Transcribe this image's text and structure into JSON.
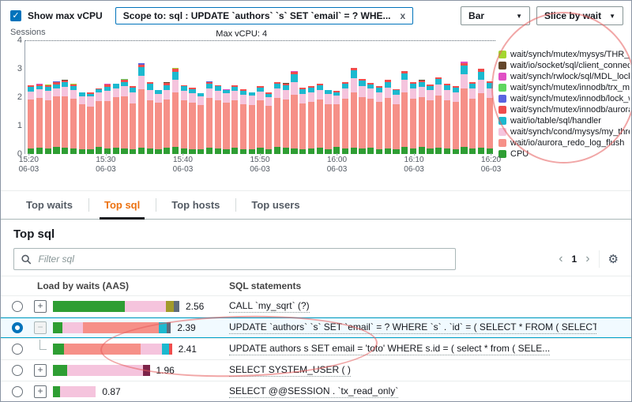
{
  "icons": {
    "check": "✓",
    "caret": "▼",
    "gear": "⚙"
  },
  "topbar": {
    "show_max_vcpu_label": "Show max vCPU",
    "scope_chip": "Scope to: sql : UPDATE `authors` `s` SET `email` = ? WHE...",
    "chip_close": "x",
    "chart_type_dropdown": "Bar",
    "slice_dropdown": "Slice by wait"
  },
  "chart_data": {
    "type": "bar",
    "stacked": true,
    "ylabel": "Sessions",
    "ylim": [
      0,
      4
    ],
    "yticks": [
      4,
      3,
      2,
      1,
      0
    ],
    "max_vcpu_label": "Max vCPU: 4",
    "max_vcpu_value": 4,
    "grid": "off",
    "legend_position": "right",
    "x_ticks": [
      {
        "time": "15:20",
        "date": "06-03"
      },
      {
        "time": "15:30",
        "date": "06-03"
      },
      {
        "time": "15:40",
        "date": "06-03"
      },
      {
        "time": "15:50",
        "date": "06-03"
      },
      {
        "time": "16:00",
        "date": "06-03"
      },
      {
        "time": "16:10",
        "date": "06-03"
      },
      {
        "time": "16:20",
        "date": "06-03"
      }
    ],
    "tick_bar_indices": [
      0,
      9,
      18,
      27,
      36,
      45,
      54
    ],
    "series": [
      {
        "name": "CPU",
        "color": "#2e9e33"
      },
      {
        "name": "wait/io/aurora_redo_log_flush",
        "color": "#f69088"
      },
      {
        "name": "wait/synch/cond/mysys/my_thread_var",
        "color": "#f5c4dd"
      },
      {
        "name": "wait/io/table/sql/handler",
        "color": "#1cb9cf"
      },
      {
        "name": "wait/synch/mutex/innodb/aurora_lock",
        "color": "#ef4d4d"
      },
      {
        "name": "wait/synch/mutex/innodb/lock_wait_m",
        "color": "#5a63e0"
      },
      {
        "name": "wait/synch/mutex/innodb/trx_mutex",
        "color": "#5ed65e"
      },
      {
        "name": "wait/synch/rwlock/sql/MDL_lock::rwl",
        "color": "#e04fc4"
      },
      {
        "name": "wait/io/socket/sql/client_connectio",
        "color": "#63462b"
      },
      {
        "name": "wait/synch/mutex/mysys/THR_LOCK::mu",
        "color": "#a4d62f"
      }
    ],
    "bars": [
      [
        0.2,
        1.72,
        0.28,
        0.15,
        0.07,
        0,
        0,
        0,
        0,
        0
      ],
      [
        0.22,
        1.75,
        0.3,
        0.12,
        0.05,
        0,
        0,
        0.03,
        0,
        0
      ],
      [
        0.2,
        1.7,
        0.32,
        0.14,
        0.06,
        0,
        0,
        0,
        0,
        0.02
      ],
      [
        0.24,
        1.78,
        0.3,
        0.12,
        0.08,
        0.03,
        0,
        0,
        0,
        0
      ],
      [
        0.22,
        1.82,
        0.33,
        0.15,
        0.06,
        0,
        0,
        0,
        0.02,
        0
      ],
      [
        0.2,
        1.74,
        0.3,
        0.16,
        0.05,
        0,
        0,
        0,
        0,
        0.02
      ],
      [
        0.16,
        1.58,
        0.3,
        0.12,
        0,
        0,
        0,
        0,
        0,
        0
      ],
      [
        0.18,
        1.5,
        0.34,
        0.1,
        0.05,
        0,
        0,
        0,
        0,
        0
      ],
      [
        0.24,
        1.62,
        0.3,
        0.12,
        0.04,
        0,
        0,
        0,
        0,
        0
      ],
      [
        0.2,
        1.66,
        0.36,
        0.14,
        0.08,
        0,
        0,
        0.03,
        0,
        0
      ],
      [
        0.22,
        1.78,
        0.32,
        0.14,
        0,
        0,
        0,
        0,
        0,
        0
      ],
      [
        0.2,
        1.84,
        0.34,
        0.16,
        0.06,
        0,
        0.03,
        0,
        0,
        0
      ],
      [
        0.18,
        1.6,
        0.38,
        0.18,
        0.05,
        0,
        0,
        0,
        0,
        0
      ],
      [
        0.22,
        2.05,
        0.48,
        0.3,
        0.1,
        0.05,
        0,
        0,
        0,
        0
      ],
      [
        0.2,
        1.7,
        0.36,
        0.22,
        0.06,
        0,
        0,
        0,
        0,
        0
      ],
      [
        0.18,
        1.62,
        0.32,
        0.14,
        0,
        0,
        0,
        0,
        0,
        0
      ],
      [
        0.22,
        1.7,
        0.34,
        0.16,
        0.08,
        0,
        0,
        0,
        0.02,
        0
      ],
      [
        0.24,
        1.92,
        0.45,
        0.28,
        0.1,
        0,
        0,
        0,
        0,
        0.03
      ],
      [
        0.2,
        1.68,
        0.34,
        0.16,
        0.05,
        0,
        0,
        0,
        0,
        0
      ],
      [
        0.18,
        1.64,
        0.32,
        0.14,
        0.06,
        0,
        0,
        0,
        0,
        0
      ],
      [
        0.16,
        1.56,
        0.3,
        0.12,
        0,
        0,
        0,
        0,
        0,
        0
      ],
      [
        0.22,
        1.76,
        0.34,
        0.14,
        0.08,
        0.03,
        0,
        0,
        0,
        0
      ],
      [
        0.2,
        1.7,
        0.32,
        0.16,
        0.05,
        0,
        0,
        0,
        0,
        0
      ],
      [
        0.18,
        1.62,
        0.34,
        0.12,
        0,
        0,
        0,
        0.03,
        0,
        0
      ],
      [
        0.22,
        1.68,
        0.32,
        0.14,
        0.06,
        0,
        0,
        0,
        0,
        0
      ],
      [
        0.18,
        1.58,
        0.32,
        0.14,
        0.05,
        0,
        0,
        0,
        0,
        0
      ],
      [
        0.16,
        1.56,
        0.34,
        0.12,
        0,
        0,
        0,
        0,
        0,
        0
      ],
      [
        0.22,
        1.66,
        0.32,
        0.14,
        0.06,
        0,
        0,
        0,
        0,
        0
      ],
      [
        0.18,
        1.52,
        0.3,
        0.12,
        0.05,
        0,
        0,
        0,
        0,
        0
      ],
      [
        0.26,
        1.72,
        0.34,
        0.16,
        0.06,
        0,
        0,
        0,
        0,
        0
      ],
      [
        0.22,
        1.7,
        0.34,
        0.16,
        0.05,
        0,
        0,
        0,
        0.02,
        0
      ],
      [
        0.2,
        1.88,
        0.46,
        0.26,
        0.08,
        0,
        0,
        0.03,
        0,
        0
      ],
      [
        0.18,
        1.6,
        0.34,
        0.16,
        0.05,
        0,
        0,
        0,
        0,
        0
      ],
      [
        0.2,
        1.64,
        0.34,
        0.16,
        0.06,
        0,
        0,
        0,
        0,
        0
      ],
      [
        0.22,
        1.7,
        0.34,
        0.16,
        0.05,
        0,
        0,
        0,
        0,
        0
      ],
      [
        0.18,
        1.58,
        0.36,
        0.14,
        0,
        0,
        0,
        0,
        0,
        0
      ],
      [
        0.24,
        1.5,
        0.32,
        0.12,
        0.05,
        0,
        0,
        0,
        0,
        0
      ],
      [
        0.2,
        1.74,
        0.36,
        0.16,
        0.08,
        0,
        0,
        0,
        0,
        0
      ],
      [
        0.22,
        1.95,
        0.5,
        0.28,
        0.08,
        0,
        0,
        0,
        0,
        0
      ],
      [
        0.2,
        1.8,
        0.38,
        0.2,
        0.06,
        0,
        0,
        0,
        0,
        0
      ],
      [
        0.22,
        1.72,
        0.36,
        0.14,
        0.05,
        0,
        0,
        0,
        0,
        0
      ],
      [
        0.18,
        1.66,
        0.34,
        0.16,
        0.06,
        0,
        0,
        0,
        0,
        0
      ],
      [
        0.2,
        1.76,
        0.38,
        0.18,
        0.08,
        0,
        0,
        0,
        0,
        0
      ],
      [
        0.16,
        1.6,
        0.32,
        0.16,
        0.05,
        0,
        0,
        0,
        0,
        0
      ],
      [
        0.26,
        1.9,
        0.44,
        0.24,
        0.08,
        0,
        0,
        0,
        0,
        0
      ],
      [
        0.2,
        1.74,
        0.36,
        0.18,
        0.05,
        0,
        0,
        0,
        0,
        0
      ],
      [
        0.24,
        1.76,
        0.36,
        0.16,
        0.06,
        0,
        0,
        0,
        0.02,
        0
      ],
      [
        0.2,
        1.7,
        0.34,
        0.16,
        0.05,
        0,
        0,
        0,
        0,
        0
      ],
      [
        0.22,
        1.84,
        0.38,
        0.2,
        0.06,
        0,
        0,
        0,
        0,
        0
      ],
      [
        0.2,
        1.7,
        0.36,
        0.16,
        0.05,
        0,
        0,
        0,
        0,
        0
      ],
      [
        0.18,
        1.66,
        0.34,
        0.16,
        0.05,
        0,
        0,
        0,
        0,
        0
      ],
      [
        0.24,
        2.08,
        0.5,
        0.3,
        0.08,
        0,
        0,
        0.05,
        0,
        0
      ],
      [
        0.2,
        1.74,
        0.36,
        0.18,
        0.05,
        0,
        0,
        0,
        0,
        0
      ],
      [
        0.22,
        1.92,
        0.46,
        0.3,
        0.1,
        0,
        0,
        0,
        0,
        0
      ],
      [
        0.2,
        1.76,
        0.36,
        0.18,
        0.06,
        0,
        0,
        0,
        0,
        0
      ]
    ]
  },
  "tabs": {
    "items": [
      "Top waits",
      "Top sql",
      "Top hosts",
      "Top users"
    ],
    "active": "Top sql"
  },
  "panel": {
    "title": "Top sql",
    "filter_placeholder": "Filter sql",
    "pager_prev": "‹",
    "page": "1",
    "pager_next": "›"
  },
  "table": {
    "columns": [
      "Load by waits (AAS)",
      "SQL statements"
    ],
    "expand_plus": "+",
    "expand_minus": "−",
    "rows": [
      {
        "selected": false,
        "expander": "plus",
        "value": "2.56",
        "segments": [
          {
            "color": "#2e9e33",
            "v": 1.46
          },
          {
            "color": "#f5c4dd",
            "v": 0.83
          },
          {
            "color": "#a29a2a",
            "v": 0.16
          },
          {
            "color": "#5f6b7a",
            "v": 0.11
          }
        ],
        "sql": "CALL `my_sqrt` (?)"
      },
      {
        "selected": true,
        "expander": "minus",
        "value": "2.39",
        "segments": [
          {
            "color": "#2e9e33",
            "v": 0.19
          },
          {
            "color": "#f5c4dd",
            "v": 0.42
          },
          {
            "color": "#f69088",
            "v": 1.54
          },
          {
            "color": "#1cb9cf",
            "v": 0.16
          },
          {
            "color": "#5f6b7a",
            "v": 0.08
          }
        ],
        "sql": "UPDATE `authors` `s` SET `email` = ? WHERE `s` . `id` = ( SELECT * FROM ( SELECT..."
      },
      {
        "selected": false,
        "expander": "child",
        "value": "2.41",
        "segments": [
          {
            "color": "#2e9e33",
            "v": 0.22
          },
          {
            "color": "#f69088",
            "v": 1.56
          },
          {
            "color": "#f5c4dd",
            "v": 0.43
          },
          {
            "color": "#1cb9cf",
            "v": 0.14
          },
          {
            "color": "#ef4d4d",
            "v": 0.06
          }
        ],
        "sql": "UPDATE authors s SET email = 'toto' WHERE s.id = ( select * from ( SELE..."
      },
      {
        "selected": false,
        "expander": "plus",
        "value": "1.96",
        "segments": [
          {
            "color": "#2e9e33",
            "v": 0.29
          },
          {
            "color": "#f5c4dd",
            "v": 1.54
          },
          {
            "color": "#7d2349",
            "v": 0.13
          }
        ],
        "sql": "SELECT SYSTEM_USER ( )"
      },
      {
        "selected": false,
        "expander": "plus",
        "value": "0.87",
        "segments": [
          {
            "color": "#2e9e33",
            "v": 0.14
          },
          {
            "color": "#f5c4dd",
            "v": 0.73
          }
        ],
        "sql": "SELECT @@SESSION . `tx_read_only`"
      }
    ]
  }
}
